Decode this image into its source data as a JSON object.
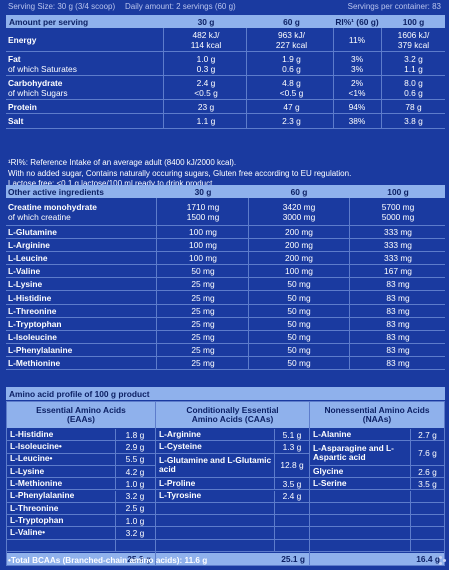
{
  "top": {
    "serving_size": "Serving Size: 30 g (3/4 scoop)",
    "daily_amount": "Daily amount: 2 servings (60 g)",
    "servings_per_container": "Servings per container: 83"
  },
  "nutrition": {
    "headers": [
      "Amount per serving",
      "30 g",
      "60 g",
      "RI%¹ (60 g)",
      "100 g"
    ],
    "rows": [
      {
        "name": "Energy",
        "sub": "",
        "v30": [
          "482 kJ/",
          "114 kcal"
        ],
        "v60": [
          "963 kJ/",
          "227 kcal"
        ],
        "ri": [
          "11%"
        ],
        "v100": [
          "1606 kJ/",
          "379 kcal"
        ]
      },
      {
        "name": "Fat",
        "sub": "of which Saturates",
        "v30": [
          "1.0 g",
          "0.3 g"
        ],
        "v60": [
          "1.9 g",
          "0.6 g"
        ],
        "ri": [
          "3%",
          "3%"
        ],
        "v100": [
          "3.2 g",
          "1.1 g"
        ]
      },
      {
        "name": "Carbohydrate",
        "sub": "of which Sugars",
        "v30": [
          "2.4 g",
          "<0.5 g"
        ],
        "v60": [
          "4.8 g",
          "<0.5 g"
        ],
        "ri": [
          "2%",
          "<1%"
        ],
        "v100": [
          "8.0 g",
          "0.6 g"
        ]
      },
      {
        "name": "Protein",
        "sub": "",
        "v30": [
          "23 g"
        ],
        "v60": [
          "47 g"
        ],
        "ri": [
          "94%"
        ],
        "v100": [
          "78 g"
        ]
      },
      {
        "name": "Salt",
        "sub": "",
        "v30": [
          "1.1 g"
        ],
        "v60": [
          "2.3 g"
        ],
        "ri": [
          "38%"
        ],
        "v100": [
          "3.8 g"
        ]
      }
    ]
  },
  "notes": [
    "¹RI%: Reference Intake of an average adult (8400 kJ/2000 kcal).",
    "With no added sugar, Contains naturally occuring sugars, Gluten free according to EU regulation.",
    "Lactose free: <0.1 g lactose/100 ml ready to drink product."
  ],
  "other": {
    "headers": [
      "Other active ingredients",
      "30 g",
      "60 g",
      "100 g"
    ],
    "creatine": {
      "name": "Creatine monohydrate",
      "sub": "of which creatine",
      "v30": [
        "1710 mg",
        "1500 mg"
      ],
      "v60": [
        "3420 mg",
        "3000 mg"
      ],
      "v100": [
        "5700 mg",
        "5000 mg"
      ]
    },
    "rows": [
      {
        "name": "L-Glutamine",
        "v30": "100 mg",
        "v60": "200 mg",
        "v100": "333 mg"
      },
      {
        "name": "L-Arginine",
        "v30": "100 mg",
        "v60": "200 mg",
        "v100": "333 mg"
      },
      {
        "name": "L-Leucine",
        "v30": "100 mg",
        "v60": "200 mg",
        "v100": "333 mg"
      },
      {
        "name": "L-Valine",
        "v30": "50 mg",
        "v60": "100 mg",
        "v100": "167 mg"
      },
      {
        "name": "L-Lysine",
        "v30": "25 mg",
        "v60": "50 mg",
        "v100": "83 mg"
      },
      {
        "name": "L-Histidine",
        "v30": "25 mg",
        "v60": "50 mg",
        "v100": "83 mg"
      },
      {
        "name": "L-Threonine",
        "v30": "25 mg",
        "v60": "50 mg",
        "v100": "83 mg"
      },
      {
        "name": "L-Tryptophan",
        "v30": "25 mg",
        "v60": "50 mg",
        "v100": "83 mg"
      },
      {
        "name": "L-Isoleucine",
        "v30": "25 mg",
        "v60": "50 mg",
        "v100": "83 mg"
      },
      {
        "name": "L-Phenylalanine",
        "v30": "25 mg",
        "v60": "50 mg",
        "v100": "83 mg"
      },
      {
        "name": "L-Methionine",
        "v30": "25 mg",
        "v60": "50 mg",
        "v100": "83 mg"
      }
    ]
  },
  "amino": {
    "title": "Amino acid profile of 100 g product",
    "columns": [
      {
        "head": [
          "Essential Amino Acids",
          "(EAAs)"
        ],
        "rows": [
          {
            "name": "L-Histidine",
            "value": "1.8 g"
          },
          {
            "name": "L-Isoleucine•",
            "value": "2.9 g"
          },
          {
            "name": "L-Leucine•",
            "value": "5.5 g"
          },
          {
            "name": "L-Lysine",
            "value": "4.2 g"
          },
          {
            "name": "L-Methionine",
            "value": "1.0 g"
          },
          {
            "name": "L-Phenylalanine",
            "value": "3.2 g"
          },
          {
            "name": "L-Threonine",
            "value": "2.5 g"
          },
          {
            "name": "L-Tryptophan",
            "value": "1.0 g"
          },
          {
            "name": "L-Valine•",
            "value": "3.2 g"
          }
        ],
        "total": "25.3 g"
      },
      {
        "head": [
          "Conditionally Essential",
          "Amino Acids (CAAs)"
        ],
        "rows": [
          {
            "name": "L-Arginine",
            "value": "5.1 g"
          },
          {
            "name": "L-Cysteine",
            "value": "1.3 g"
          },
          {
            "name": "L-Glutamine and L-Glutamic acid",
            "value": "12.8 g"
          },
          {
            "name": "L-Proline",
            "value": "3.5 g"
          },
          {
            "name": "L-Tyrosine",
            "value": "2.4 g"
          }
        ],
        "total": "25.1 g"
      },
      {
        "head": [
          "Nonessential Amino Acids",
          "(NAAs)"
        ],
        "rows": [
          {
            "name": "L-Alanine",
            "value": "2.7 g"
          },
          {
            "name": "L-Asparagine and L-Aspartic acid",
            "value": "7.6 g"
          },
          {
            "name": "Glycine",
            "value": "2.6 g"
          },
          {
            "name": "L-Serine",
            "value": "3.5 g"
          }
        ],
        "total": "16.4 g"
      }
    ],
    "footer": "•Total BCAAs (Branched-chain amino acids): 11.6 g"
  }
}
